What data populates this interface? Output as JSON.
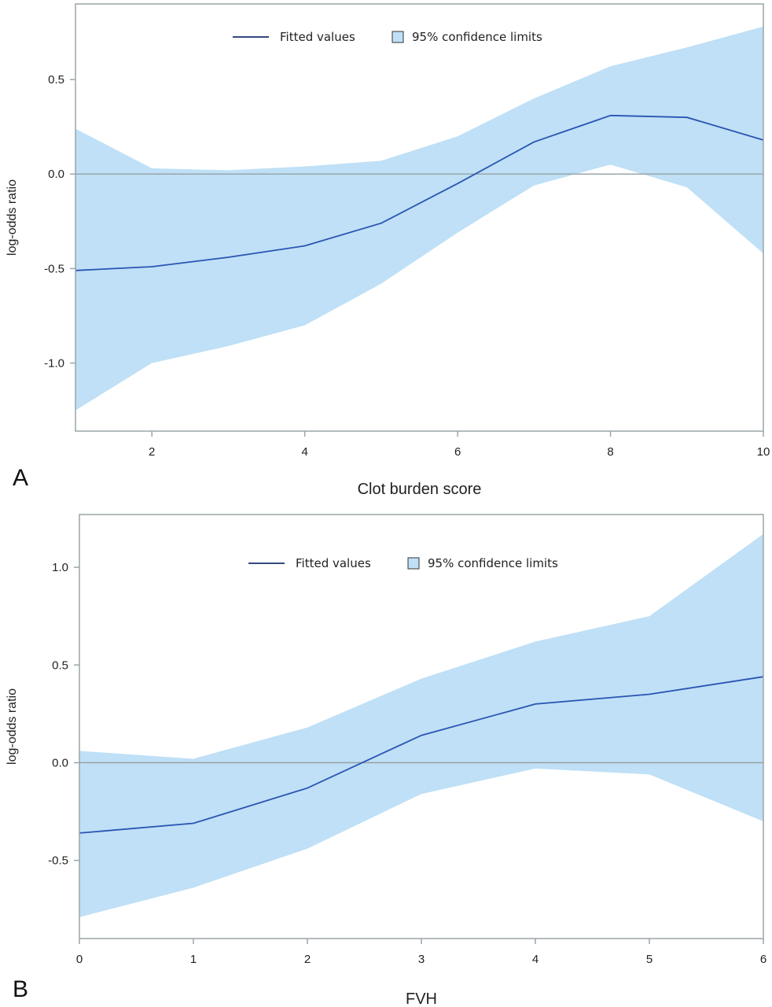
{
  "colors": {
    "band": "#bfe0f6",
    "line": "#2a54b4",
    "zero_line": "#9aa5a9",
    "frame": "#9aa5a9",
    "legend_line": "#1a2f6b"
  },
  "chart_data": [
    {
      "panel_label": "A",
      "type": "line",
      "xlabel": "Clot burden score",
      "ylabel": "log-odds ratio",
      "xlim": [
        1,
        10
      ],
      "ylim": [
        -1.36,
        0.9
      ],
      "xticks": [
        2,
        4,
        6,
        8,
        10
      ],
      "yticks": [
        0.5,
        0.0,
        -0.5,
        -1.0
      ],
      "ytick_labels": [
        "0.5",
        "0.0",
        "-0.5",
        "-1.0"
      ],
      "zero_line": 0,
      "legend": {
        "placement": "top-center",
        "line_label": "Fitted values",
        "band_label": "95% confidence limits"
      },
      "x": [
        1,
        2,
        3,
        4,
        5,
        6,
        7,
        8,
        9,
        10
      ],
      "series": [
        {
          "name": "Fitted values",
          "values": [
            -0.51,
            -0.49,
            -0.44,
            -0.38,
            -0.26,
            -0.05,
            0.17,
            0.31,
            0.3,
            0.18
          ]
        }
      ],
      "band": {
        "name": "95% confidence limits",
        "lower": [
          -1.25,
          -1.0,
          -0.91,
          -0.8,
          -0.58,
          -0.31,
          -0.06,
          0.05,
          -0.07,
          -0.42
        ],
        "upper": [
          0.24,
          0.03,
          0.02,
          0.04,
          0.07,
          0.2,
          0.4,
          0.57,
          0.67,
          0.78
        ]
      }
    },
    {
      "panel_label": "B",
      "type": "line",
      "xlabel": "FVH",
      "ylabel": "log-odds ratio",
      "xlim": [
        0,
        6
      ],
      "ylim": [
        -0.9,
        1.27
      ],
      "xticks": [
        0,
        1,
        2,
        3,
        4,
        5,
        6
      ],
      "yticks": [
        1.0,
        0.5,
        0.0,
        -0.5
      ],
      "ytick_labels": [
        "1.0",
        "0.5",
        "0.0",
        "-0.5"
      ],
      "zero_line": 0,
      "legend": {
        "placement": "top-center",
        "line_label": "Fitted values",
        "band_label": "95% confidence limits"
      },
      "x": [
        0,
        1,
        2,
        3,
        4,
        5,
        6
      ],
      "series": [
        {
          "name": "Fitted values",
          "values": [
            -0.36,
            -0.31,
            -0.13,
            0.14,
            0.3,
            0.35,
            0.44
          ]
        }
      ],
      "band": {
        "name": "95% confidence limits",
        "lower": [
          -0.79,
          -0.64,
          -0.44,
          -0.16,
          -0.03,
          -0.06,
          -0.3
        ],
        "upper": [
          0.06,
          0.02,
          0.18,
          0.43,
          0.62,
          0.75,
          1.17
        ]
      }
    }
  ]
}
